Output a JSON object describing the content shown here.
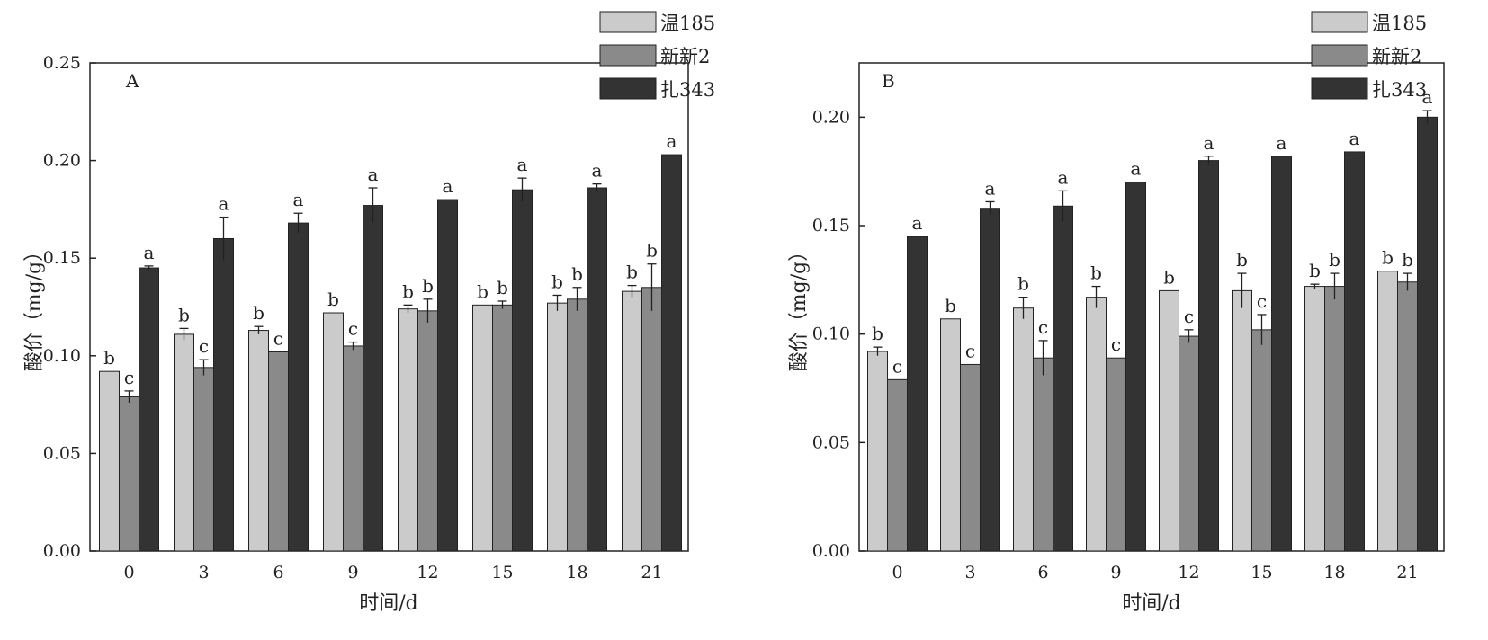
{
  "colors": {
    "s0": "#cbcbcb",
    "s1": "#8a8a8a",
    "s2": "#333333"
  },
  "chart_data": [
    {
      "type": "bar",
      "panel_label": "A",
      "categories": [
        "0",
        "3",
        "6",
        "9",
        "12",
        "15",
        "18",
        "21"
      ],
      "xlabel": "时间/d",
      "ylabel": "酸价（mg/g）",
      "ylim": [
        0,
        0.25
      ],
      "yticks": [
        "0.00",
        "0.05",
        "0.10",
        "0.15",
        "0.20",
        "0.25"
      ],
      "legend": [
        "温185",
        "新新2",
        "扎343"
      ],
      "series": [
        {
          "name": "温185",
          "values": [
            0.092,
            0.111,
            0.113,
            0.122,
            0.124,
            0.126,
            0.127,
            0.133
          ],
          "errors": [
            0,
            0.003,
            0.002,
            0,
            0.002,
            0,
            0.004,
            0.003
          ],
          "labels": [
            "b",
            "b",
            "b",
            "b",
            "b",
            "b",
            "b",
            "b"
          ]
        },
        {
          "name": "新新2",
          "values": [
            0.079,
            0.094,
            0.102,
            0.105,
            0.123,
            0.126,
            0.129,
            0.135
          ],
          "errors": [
            0.003,
            0.004,
            0,
            0.002,
            0.006,
            0.002,
            0.006,
            0.012
          ],
          "labels": [
            "c",
            "c",
            "c",
            "c",
            "b",
            "b",
            "b",
            "b"
          ]
        },
        {
          "name": "扎343",
          "values": [
            0.145,
            0.16,
            0.168,
            0.177,
            0.18,
            0.185,
            0.186,
            0.203
          ],
          "errors": [
            0.001,
            0.011,
            0.005,
            0.009,
            0,
            0.006,
            0.002,
            0
          ],
          "labels": [
            "a",
            "a",
            "a",
            "a",
            "a",
            "a",
            "a",
            "a"
          ]
        }
      ]
    },
    {
      "type": "bar",
      "panel_label": "B",
      "categories": [
        "0",
        "3",
        "6",
        "9",
        "12",
        "15",
        "18",
        "21"
      ],
      "xlabel": "时间/d",
      "ylabel": "酸价（mg/g）",
      "ylim": [
        0,
        0.225
      ],
      "yticks": [
        "0.00",
        "0.05",
        "0.10",
        "0.15",
        "0.20"
      ],
      "legend": [
        "温185",
        "新新2",
        "扎343"
      ],
      "series": [
        {
          "name": "温185",
          "values": [
            0.092,
            0.107,
            0.112,
            0.117,
            0.12,
            0.12,
            0.122,
            0.129
          ],
          "errors": [
            0.002,
            0,
            0.005,
            0.005,
            0,
            0.008,
            0.001,
            0
          ],
          "labels": [
            "b",
            "b",
            "b",
            "b",
            "b",
            "b",
            "b",
            "b"
          ]
        },
        {
          "name": "新新2",
          "values": [
            0.079,
            0.086,
            0.089,
            0.089,
            0.099,
            0.102,
            0.122,
            0.124
          ],
          "errors": [
            0,
            0,
            0.008,
            0,
            0.003,
            0.007,
            0.006,
            0.004
          ],
          "labels": [
            "c",
            "c",
            "c",
            "c",
            "c",
            "c",
            "b",
            "b"
          ]
        },
        {
          "name": "扎343",
          "values": [
            0.145,
            0.158,
            0.159,
            0.17,
            0.18,
            0.182,
            0.184,
            0.2
          ],
          "errors": [
            0,
            0.003,
            0.007,
            0,
            0.002,
            0,
            0,
            0.003
          ],
          "labels": [
            "a",
            "a",
            "a",
            "a",
            "a",
            "a",
            "a",
            "a"
          ]
        }
      ]
    }
  ]
}
